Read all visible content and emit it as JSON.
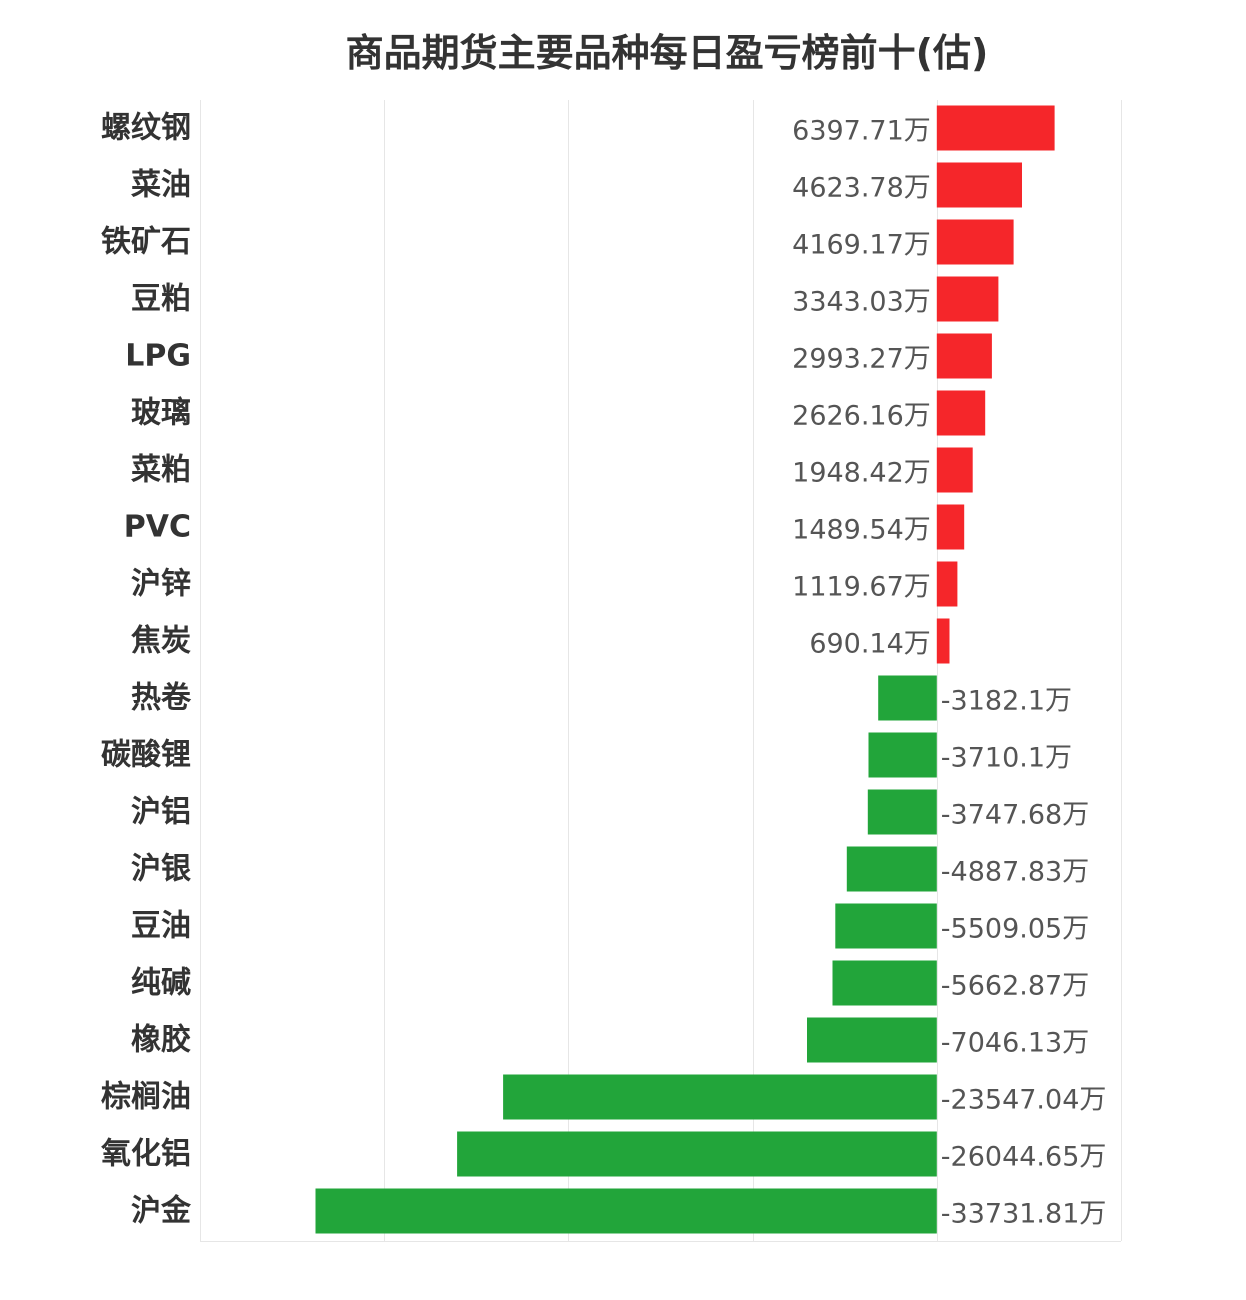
{
  "chart_data": {
    "type": "bar",
    "orientation": "horizontal",
    "title": "商品期货主要品种每日盈亏榜前十(估)",
    "unit_suffix": "万",
    "grid": true,
    "categories": [
      "螺纹钢",
      "菜油",
      "铁矿石",
      "豆粕",
      "LPG",
      "玻璃",
      "菜粕",
      "PVC",
      "沪锌",
      "焦炭",
      "热卷",
      "碳酸锂",
      "沪铝",
      "沪银",
      "豆油",
      "纯碱",
      "橡胶",
      "棕榈油",
      "氧化铝",
      "沪金"
    ],
    "values": [
      6397.71,
      4623.78,
      4169.17,
      3343.03,
      2993.27,
      2626.16,
      1948.42,
      1489.54,
      1119.67,
      690.14,
      -3182.1,
      -3710.1,
      -3747.68,
      -4887.83,
      -5509.05,
      -5662.87,
      -7046.13,
      -23547.04,
      -26044.65,
      -33731.81
    ],
    "value_labels": [
      "6397.71万",
      "4623.78万",
      "4169.17万",
      "3343.03万",
      "2993.27万",
      "2626.16万",
      "1948.42万",
      "1489.54万",
      "1119.67万",
      "690.14万",
      "-3182.1万",
      "-3710.1万",
      "-3747.68万",
      "-4887.83万",
      "-5509.05万",
      "-5662.87万",
      "-7046.13万",
      "-23547.04万",
      "-26044.65万",
      "-33731.81万"
    ],
    "xlim": [
      -40000,
      10000
    ],
    "colors": {
      "positive": "#f5262a",
      "negative": "#22a53a",
      "grid": "#e6e6e6",
      "text": "#333333",
      "label_text": "#555555"
    }
  }
}
